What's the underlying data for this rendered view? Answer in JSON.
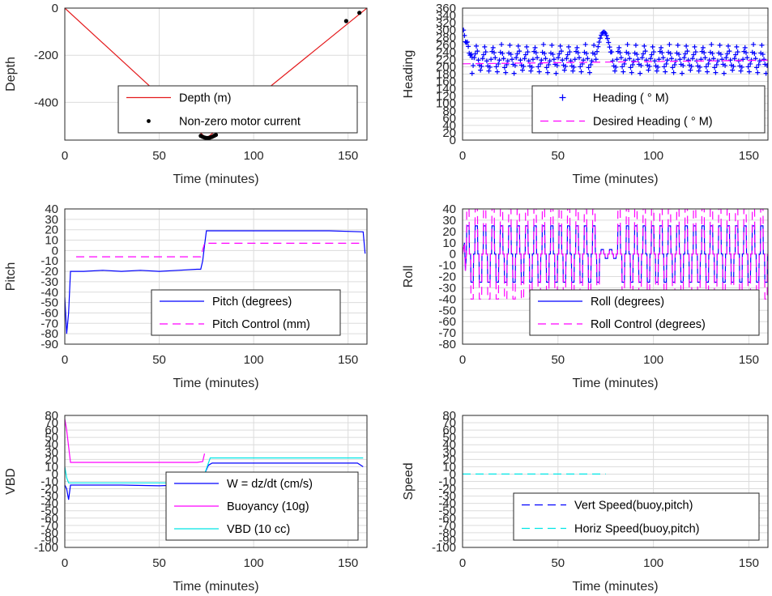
{
  "chart_data": [
    {
      "id": "depth",
      "type": "line",
      "ylabel": "Depth",
      "xlabel": "Time (minutes)",
      "xlim": [
        0,
        160
      ],
      "ylim": [
        -560,
        0
      ],
      "xticks": [
        "0",
        "50",
        "100",
        "150"
      ],
      "yticks": [
        "0",
        "-200",
        "-400"
      ],
      "ytick_values": [
        0,
        -200,
        -400
      ],
      "grid": true,
      "legend_position": "bottom-center",
      "series": [
        {
          "name": "Depth (m)",
          "color": "#e41a1c",
          "style": "line",
          "x": [
            0,
            75,
            160
          ],
          "y": [
            0,
            -552,
            0
          ]
        },
        {
          "name": "Non-zero motor current",
          "color": "#000000",
          "style": "dots",
          "x": [
            72,
            73,
            74,
            75,
            76,
            77,
            78,
            79,
            80,
            149,
            156
          ],
          "y": [
            -542,
            -546,
            -549,
            -551,
            -551,
            -549,
            -546,
            -542,
            -538,
            -55,
            -20
          ]
        }
      ]
    },
    {
      "id": "heading",
      "type": "line",
      "ylabel": "Heading",
      "xlabel": "Time (minutes)",
      "xlim": [
        0,
        160
      ],
      "ylim": [
        0,
        360
      ],
      "xticks": [
        "0",
        "50",
        "100",
        "150"
      ],
      "yticks": [
        "0",
        "20",
        "40",
        "60",
        "80",
        "100",
        "120",
        "140",
        "160",
        "180",
        "200",
        "220",
        "240",
        "260",
        "280",
        "300",
        "320",
        "340",
        "360"
      ],
      "ytick_values": [
        0,
        20,
        40,
        60,
        80,
        100,
        120,
        140,
        160,
        180,
        200,
        220,
        240,
        260,
        280,
        300,
        320,
        340,
        360
      ],
      "grid": true,
      "legend_position": "bottom-right",
      "series": [
        {
          "name": "Heading (  ° M)",
          "color": "#0000ff",
          "style": "plus",
          "pattern": {
            "start": [
              0,
              300
            ],
            "osc_from": 5,
            "osc_to": 160,
            "period": 4.4,
            "low": 185,
            "high": 255,
            "bump": {
              "from": 70,
              "to": 78,
              "peak": 295
            }
          }
        },
        {
          "name": "Desired Heading (    ° M)",
          "color": "#ff00ff",
          "style": "dashed",
          "x": [
            0,
            160
          ],
          "y": [
            208,
            218
          ]
        }
      ]
    },
    {
      "id": "pitch",
      "type": "line",
      "ylabel": "Pitch",
      "xlabel": "Time (minutes)",
      "xlim": [
        0,
        160
      ],
      "ylim": [
        -90,
        40
      ],
      "xticks": [
        "0",
        "50",
        "100",
        "150"
      ],
      "yticks": [
        "40",
        "30",
        "20",
        "10",
        "0",
        "-10",
        "-20",
        "-30",
        "-40",
        "-50",
        "-60",
        "-70",
        "-80",
        "-90"
      ],
      "ytick_values": [
        40,
        30,
        20,
        10,
        0,
        -10,
        -20,
        -30,
        -40,
        -50,
        -60,
        -70,
        -80,
        -90
      ],
      "grid": true,
      "legend_position": "bottom-right",
      "series": [
        {
          "name": "Pitch (degrees)",
          "color": "#0000ff",
          "style": "line",
          "x": [
            0,
            1,
            2,
            3,
            10,
            20,
            30,
            40,
            50,
            60,
            70,
            72,
            73,
            74,
            75,
            80,
            100,
            120,
            140,
            158,
            159
          ],
          "y": [
            -45,
            -80,
            -60,
            -20,
            -20,
            -19,
            -20,
            -19,
            -20,
            -19,
            -18,
            -18,
            -10,
            5,
            19,
            19,
            19,
            19,
            19,
            18,
            -3
          ]
        },
        {
          "name": "Pitch Control (mm)",
          "color": "#ff00ff",
          "style": "dashed",
          "x": [
            6,
            72,
            74,
            158
          ],
          "y": [
            -6,
            -6,
            7,
            7
          ]
        }
      ]
    },
    {
      "id": "roll",
      "type": "line",
      "ylabel": "Roll",
      "xlabel": "Time (minutes)",
      "xlim": [
        0,
        160
      ],
      "ylim": [
        -80,
        40
      ],
      "xticks": [
        "0",
        "50",
        "100",
        "150"
      ],
      "yticks": [
        "40",
        "30",
        "20",
        "10",
        "0",
        "-10",
        "-20",
        "-30",
        "-40",
        "-50",
        "-60",
        "-70",
        "-80"
      ],
      "ytick_values": [
        40,
        30,
        20,
        10,
        0,
        -10,
        -20,
        -30,
        -40,
        -50,
        -60,
        -70,
        -80
      ],
      "grid": true,
      "legend_position": "bottom-right",
      "series": [
        {
          "name": "Roll (degrees)",
          "color": "#0000ff",
          "style": "line",
          "pattern": {
            "period": 4.4,
            "amp": 25,
            "from": 2,
            "to": 160,
            "gap_from": 70,
            "gap_to": 78
          }
        },
        {
          "name": "Roll Control (degrees)",
          "color": "#ff00ff",
          "style": "dashed",
          "pattern": {
            "period": 4.4,
            "amp": 40,
            "from": 2,
            "to": 160,
            "gap_from": 70,
            "gap_to": 78
          }
        }
      ]
    },
    {
      "id": "vbd",
      "type": "line",
      "ylabel": "VBD",
      "xlabel": "Time (minutes)",
      "xlim": [
        0,
        160
      ],
      "ylim": [
        -100,
        80
      ],
      "xticks": [
        "0",
        "50",
        "100",
        "150"
      ],
      "yticks": [
        "80",
        "70",
        "60",
        "50",
        "40",
        "30",
        "20",
        "10",
        "0",
        "-10",
        "-20",
        "-30",
        "-40",
        "-50",
        "-60",
        "-70",
        "-80",
        "-90",
        "-100"
      ],
      "ytick_values": [
        80,
        70,
        60,
        50,
        40,
        30,
        20,
        10,
        0,
        -10,
        -20,
        -30,
        -40,
        -50,
        -60,
        -70,
        -80,
        -90,
        -100
      ],
      "grid": true,
      "legend_position": "bottom-right",
      "series": [
        {
          "name": "W = dz/dt (cm/s)",
          "color": "#0000ff",
          "style": "line",
          "x": [
            0,
            1,
            2,
            3,
            10,
            30,
            50,
            70,
            72,
            74,
            76,
            78,
            80,
            100,
            120,
            140,
            155,
            158
          ],
          "y": [
            -15,
            -20,
            -35,
            -15,
            -15,
            -15,
            -16,
            -14,
            -12,
            0,
            12,
            15,
            15,
            15,
            15,
            15,
            15,
            10
          ]
        },
        {
          "name": "Buoyancy (10g)",
          "color": "#ff00ff",
          "style": "line",
          "x": [
            0,
            1,
            3,
            70,
            73,
            74
          ],
          "y": [
            75,
            60,
            16,
            16,
            17,
            28
          ]
        },
        {
          "name": "VBD (10 cc)",
          "color": "#00e5e5",
          "style": "line",
          "x": [
            0,
            1,
            2,
            3,
            73,
            74,
            77,
            158
          ],
          "y": [
            10,
            -5,
            -12,
            -12,
            -12,
            0,
            22,
            22
          ]
        }
      ]
    },
    {
      "id": "speed",
      "type": "line",
      "ylabel": "Speed",
      "xlabel": "Time (minutes)",
      "xlim": [
        0,
        160
      ],
      "ylim": [
        -100,
        80
      ],
      "xticks": [
        "0",
        "50",
        "100",
        "150"
      ],
      "yticks": [
        "80",
        "70",
        "60",
        "50",
        "40",
        "30",
        "20",
        "10",
        "0",
        "-10",
        "-20",
        "-30",
        "-40",
        "-50",
        "-60",
        "-70",
        "-80",
        "-90",
        "-100"
      ],
      "ytick_values": [
        80,
        70,
        60,
        50,
        40,
        30,
        20,
        10,
        0,
        -10,
        -20,
        -30,
        -40,
        -50,
        -60,
        -70,
        -80,
        -90,
        -100
      ],
      "grid": true,
      "legend_position": "bottom-right",
      "series": [
        {
          "name": "Vert Speed(buoy,pitch)",
          "color": "#0000ff",
          "style": "dashed",
          "x": [],
          "y": []
        },
        {
          "name": "Horiz Speed(buoy,pitch)",
          "color": "#00e5e5",
          "style": "dashed",
          "x": [
            0,
            75
          ],
          "y": [
            0,
            0
          ]
        }
      ]
    }
  ]
}
